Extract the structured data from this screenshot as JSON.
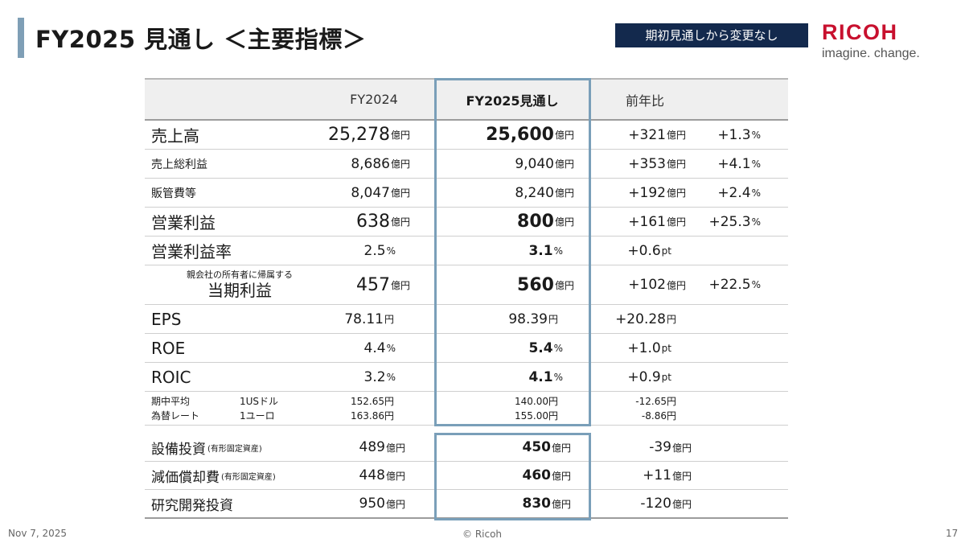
{
  "slide": {
    "title": "FY2025 見通し ＜主要指標＞",
    "badge": "期初見通しから変更なし",
    "logo_word": "RICOH",
    "logo_tagline": "imagine. change.",
    "footer_date": "Nov 7, 2025",
    "footer_copyright": "© Ricoh",
    "page_number": "17"
  },
  "colors": {
    "title_accent": "#7f9fb6",
    "badge_bg": "#13294d",
    "logo_red": "#c8102e",
    "highlight_border": "#7a9fb9"
  },
  "table": {
    "headers": {
      "fy2024": "FY2024",
      "fy2025": "FY2025見通し",
      "yoy": "前年比"
    },
    "unit_oku": "億円",
    "unit_pct": "%",
    "unit_pt": "pt",
    "unit_yen": "円",
    "rows": {
      "sales": {
        "label": "売上高",
        "fy2024": "25,278",
        "fy2025": "25,600",
        "yoy_amt": "+321",
        "yoy_pct": "+1.3"
      },
      "gross_profit": {
        "label": "売上総利益",
        "fy2024": "8,686",
        "fy2025": "9,040",
        "yoy_amt": "+353",
        "yoy_pct": "+4.1"
      },
      "sga": {
        "label": "販管費等",
        "fy2024": "8,047",
        "fy2025": "8,240",
        "yoy_amt": "+192",
        "yoy_pct": "+2.4"
      },
      "operating_profit": {
        "label": "営業利益",
        "fy2024": "638",
        "fy2025": "800",
        "yoy_amt": "+161",
        "yoy_pct": "+25.3"
      },
      "operating_margin": {
        "label": "営業利益率",
        "fy2024": "2.5",
        "fy2025": "3.1",
        "yoy_amt": "+0.6"
      },
      "net_income": {
        "note": "親会社の所有者に帰属する",
        "label": "当期利益",
        "fy2024": "457",
        "fy2025": "560",
        "yoy_amt": "+102",
        "yoy_pct": "+22.5"
      },
      "eps": {
        "label": "EPS",
        "fy2024": "78.11",
        "fy2025": "98.39",
        "yoy_amt": "+20.28"
      },
      "roe": {
        "label": "ROE",
        "fy2024": "4.4",
        "fy2025": "5.4",
        "yoy_amt": "+1.0"
      },
      "roic": {
        "label": "ROIC",
        "fy2024": "3.2",
        "fy2025": "4.1",
        "yoy_amt": "+0.9"
      },
      "fx": {
        "label_line1": "期中平均",
        "label_line2": "為替レート",
        "usd_label": "1USドル",
        "eur_label": "1ユーロ",
        "usd_fy2024": "152.65",
        "usd_fy2025": "140.00",
        "usd_yoy": "-12.65",
        "eur_fy2024": "163.86",
        "eur_fy2025": "155.00",
        "eur_yoy": "-8.86"
      }
    },
    "invest_rows": {
      "capex": {
        "label": "設備投資",
        "sub": "(有形固定資産)",
        "fy2024": "489",
        "fy2025": "450",
        "yoy_amt": "-39"
      },
      "depreciation": {
        "label": "減価償却費",
        "sub": "(有形固定資産)",
        "fy2024": "448",
        "fy2025": "460",
        "yoy_amt": "+11"
      },
      "rnd": {
        "label": "研究開発投資",
        "fy2024": "950",
        "fy2025": "830",
        "yoy_amt": "-120"
      }
    }
  }
}
